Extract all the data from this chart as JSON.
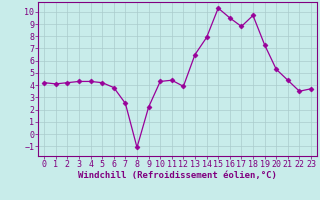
{
  "x": [
    0,
    1,
    2,
    3,
    4,
    5,
    6,
    7,
    8,
    9,
    10,
    11,
    12,
    13,
    14,
    15,
    16,
    17,
    18,
    19,
    20,
    21,
    22,
    23
  ],
  "y": [
    4.2,
    4.1,
    4.2,
    4.3,
    4.3,
    4.2,
    3.8,
    2.5,
    -1.1,
    2.2,
    4.3,
    4.4,
    3.9,
    6.5,
    7.9,
    10.3,
    9.5,
    8.8,
    9.7,
    7.3,
    5.3,
    4.4,
    3.5,
    3.7
  ],
  "line_color": "#990099",
  "marker": "D",
  "marker_size": 2.5,
  "bg_color": "#c8ecea",
  "grid_color": "#aacccc",
  "xlabel": "Windchill (Refroidissement éolien,°C)",
  "ylim": [
    -1.8,
    10.8
  ],
  "xlim": [
    -0.5,
    23.5
  ],
  "yticks": [
    -1,
    0,
    1,
    2,
    3,
    4,
    5,
    6,
    7,
    8,
    9,
    10
  ],
  "xticks": [
    0,
    1,
    2,
    3,
    4,
    5,
    6,
    7,
    8,
    9,
    10,
    11,
    12,
    13,
    14,
    15,
    16,
    17,
    18,
    19,
    20,
    21,
    22,
    23
  ],
  "label_fontsize": 6.5,
  "tick_fontsize": 6.0,
  "purple": "#800080"
}
